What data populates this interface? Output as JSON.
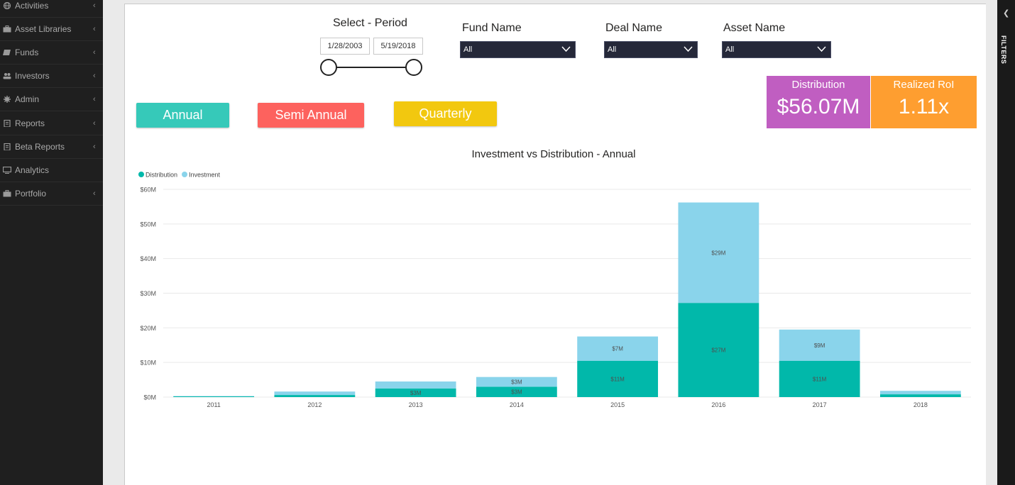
{
  "sidebar": {
    "items": [
      {
        "label": "Activities",
        "icon": "globe-icon",
        "has_chevron": true
      },
      {
        "label": "Asset Libraries",
        "icon": "briefcase-icon",
        "has_chevron": true
      },
      {
        "label": "Funds",
        "icon": "book-icon",
        "has_chevron": true
      },
      {
        "label": "Investors",
        "icon": "users-icon",
        "has_chevron": true
      },
      {
        "label": "Admin",
        "icon": "gear-icon",
        "has_chevron": true
      },
      {
        "label": "Reports",
        "icon": "document-icon",
        "has_chevron": true
      },
      {
        "label": "Beta Reports",
        "icon": "document-icon",
        "has_chevron": true
      },
      {
        "label": "Analytics",
        "icon": "monitor-icon",
        "has_chevron": false
      },
      {
        "label": "Portfolio",
        "icon": "briefcase-icon",
        "has_chevron": true
      }
    ]
  },
  "filters_pane": {
    "label": "FILTERS"
  },
  "period": {
    "title": "Select - Period",
    "start_date": "1/28/2003",
    "end_date": "5/19/2018"
  },
  "slicers": [
    {
      "title": "Fund Name",
      "value": "All"
    },
    {
      "title": "Deal Name",
      "value": "All"
    },
    {
      "title": "Asset Name",
      "value": "All"
    }
  ],
  "buttons": [
    {
      "label": "Annual",
      "color": "#36c9b9"
    },
    {
      "label": "Semi Annual",
      "color": "#fd625e"
    },
    {
      "label": "Quarterly",
      "color": "#f2c80f"
    }
  ],
  "kpis": [
    {
      "label": "Distribution",
      "value": "$56.07M",
      "color": "#c05ec1"
    },
    {
      "label": "Realized RoI",
      "value": "1.11x",
      "color": "#fe9e30"
    }
  ],
  "chart_data": {
    "type": "bar",
    "stacked": true,
    "title": "Investment vs Distribution - Annual",
    "xlabel": "",
    "ylabel": "",
    "ylim": [
      0,
      60
    ],
    "y_ticks": [
      "$0M",
      "$10M",
      "$20M",
      "$30M",
      "$40M",
      "$50M",
      "$60M"
    ],
    "grid": true,
    "legend_position": "top-left",
    "categories": [
      "2011",
      "2012",
      "2013",
      "2014",
      "2015",
      "2016",
      "2017",
      "2018"
    ],
    "series": [
      {
        "name": "Distribution",
        "color": "#01b8aa",
        "values": [
          0.2,
          0.6,
          2.5,
          3.0,
          10.5,
          27.2,
          10.5,
          0.8
        ],
        "labels": [
          "",
          "",
          "$3M",
          "$3M",
          "$11M",
          "$27M",
          "$11M",
          ""
        ]
      },
      {
        "name": "Investment",
        "color": "#8ad4eb",
        "values": [
          0.1,
          1.0,
          2.0,
          2.8,
          7.0,
          29.0,
          9.0,
          1.0
        ],
        "labels": [
          "",
          "",
          "",
          "$3M",
          "$7M",
          "$29M",
          "$9M",
          ""
        ]
      }
    ]
  }
}
